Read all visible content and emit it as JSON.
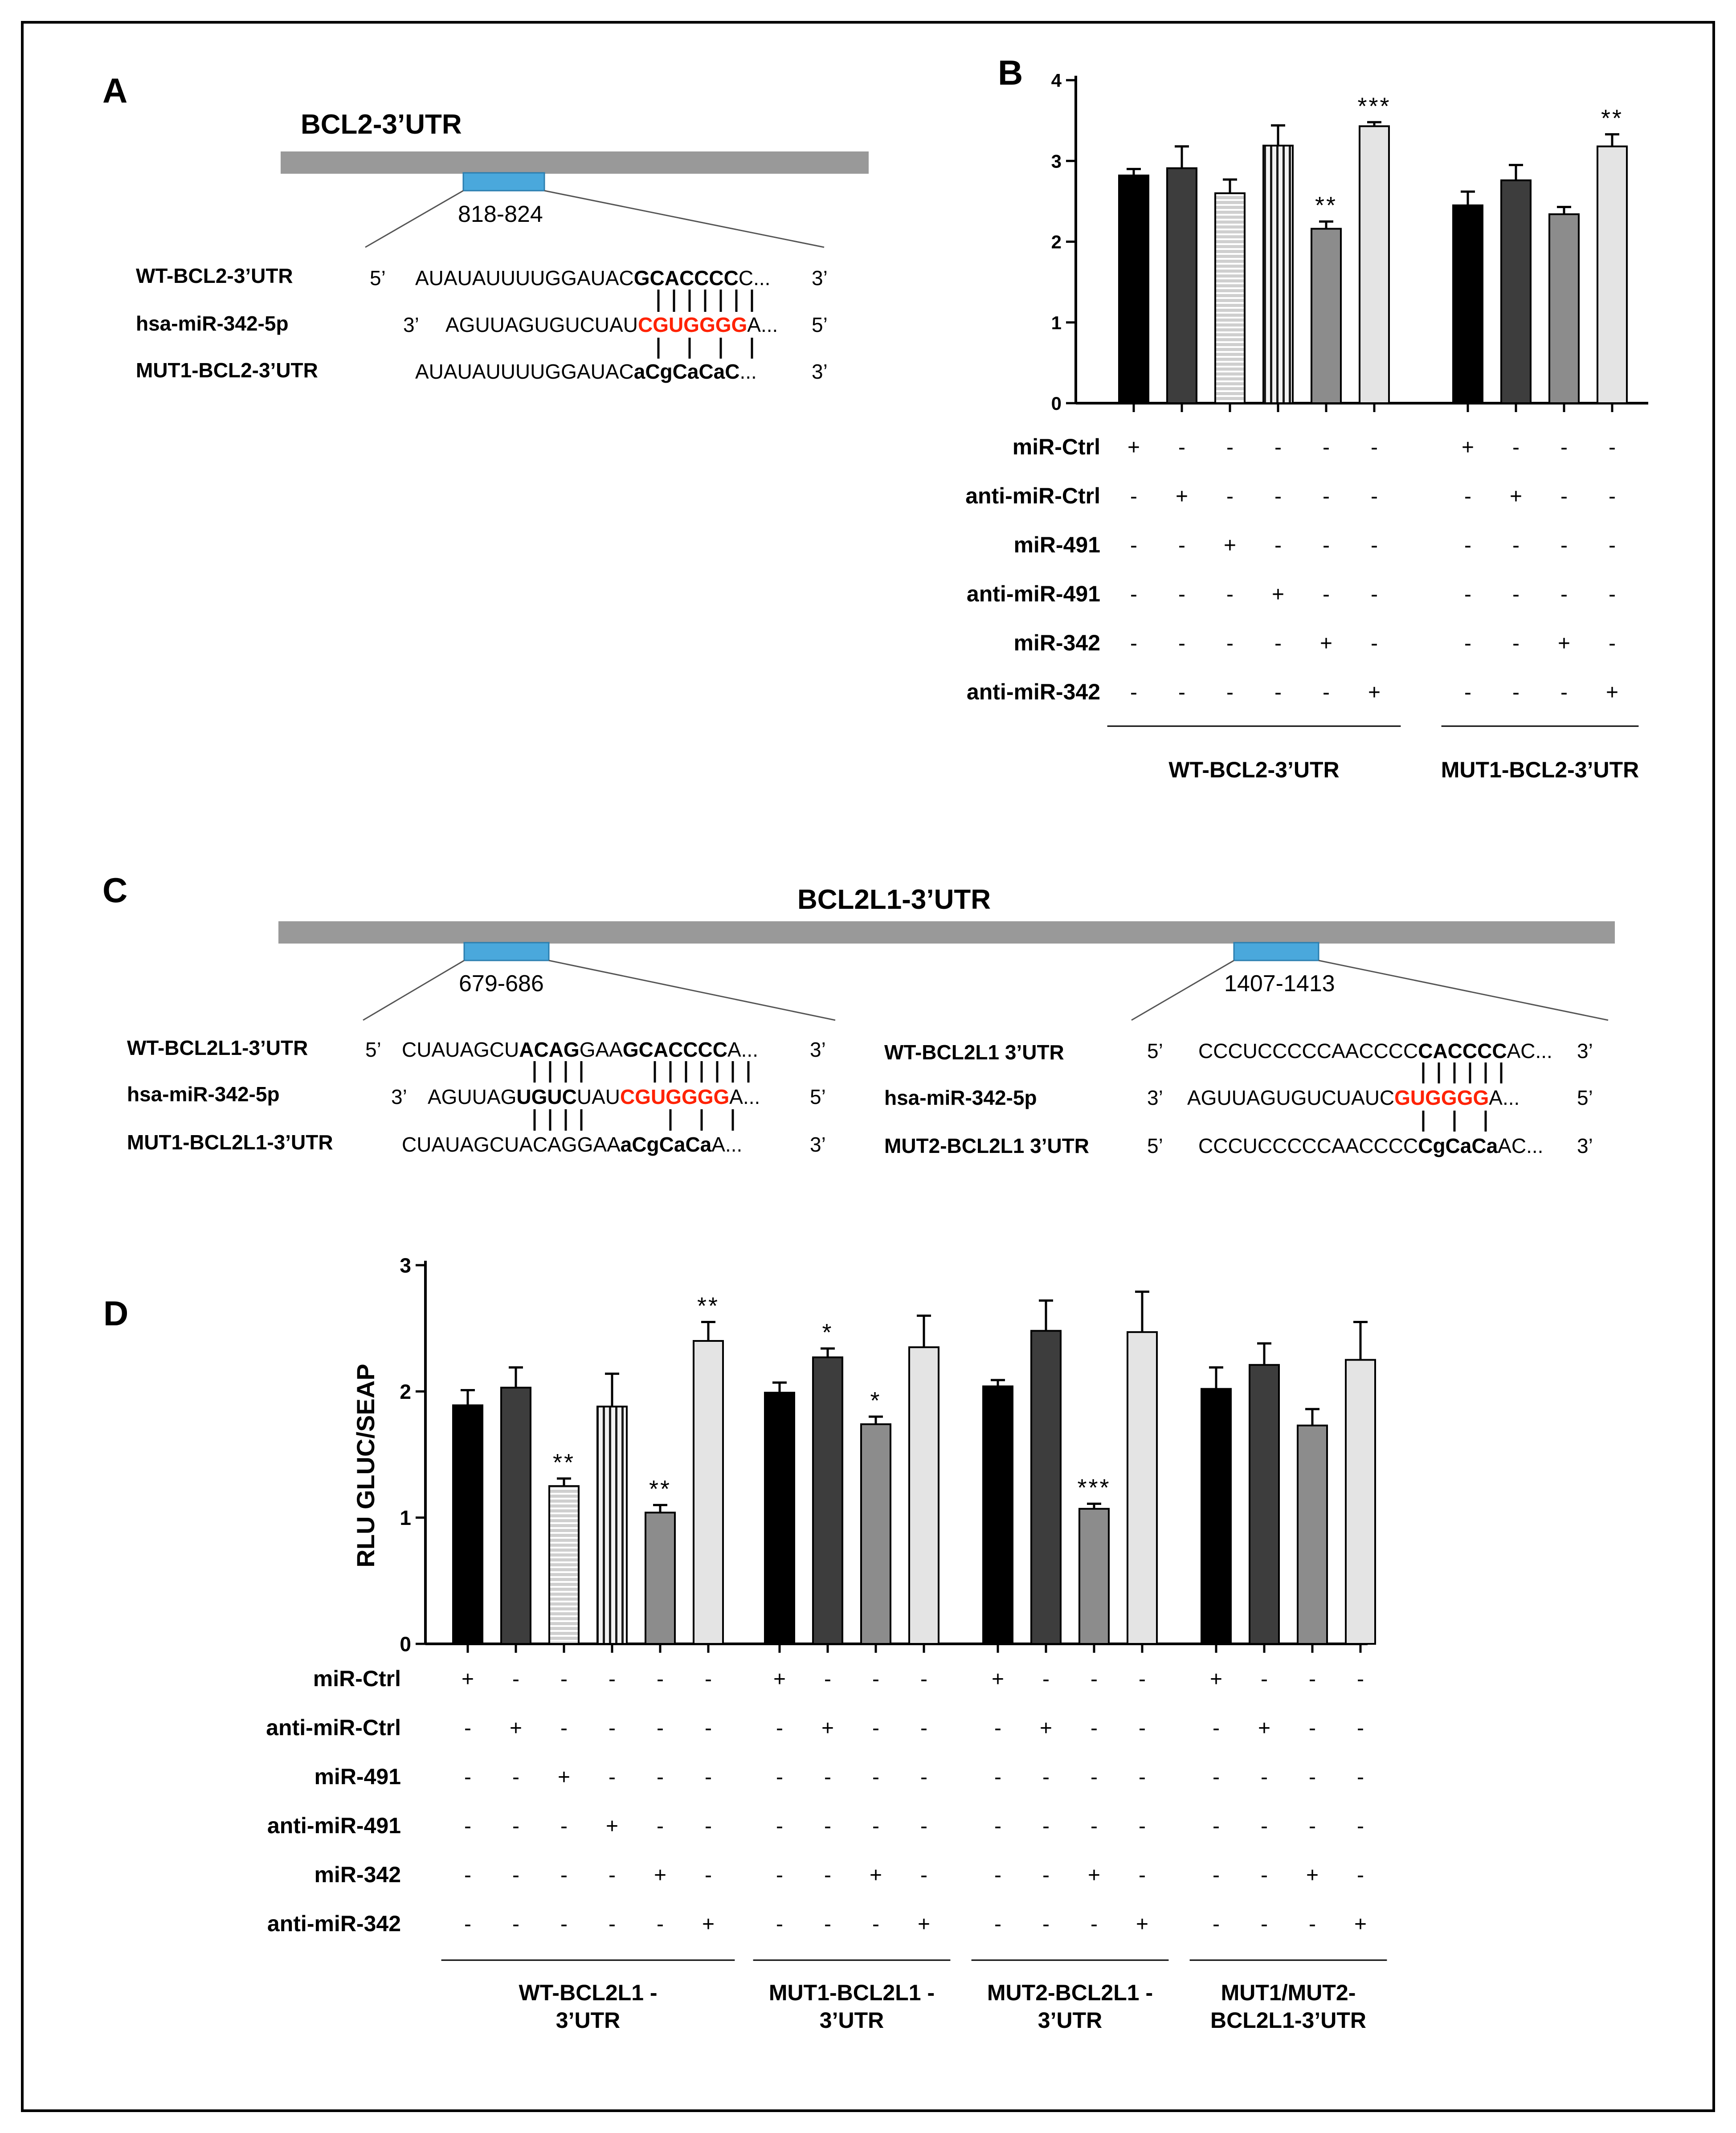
{
  "panels": {
    "A": {
      "letter": "A",
      "gene_title": "BCL2-3’UTR",
      "site_label": "818-824",
      "rows": [
        {
          "label": "WT-BCL2-3’UTR",
          "p5": "5’",
          "pre": "AUAUAUUUUGGAUAC",
          "core": "GCACCCC",
          "post": "C...",
          "p3": "3’"
        },
        {
          "label": "hsa-miR-342-5p",
          "p5": "3’",
          "pre": "AGUUAGUGUCUAU",
          "core": "CGUGGGG",
          "post": "A...",
          "p3": "5’"
        },
        {
          "label": "MUT1-BCL2-3’UTR",
          "p5": "",
          "pre": "AUAUAUUUUGGAUAC",
          "core": "aCgCaCaC",
          "post": "...",
          "p3": "3’"
        }
      ]
    },
    "C": {
      "letter": "C",
      "gene_title": "BCL2L1-3’UTR",
      "site1_label": "679-686",
      "site2_label": "1407-1413",
      "left_rows": [
        {
          "label": "WT-BCL2L1-3’UTR",
          "p5": "5’",
          "pre": "CUAUAGCU",
          "b1": "ACAG",
          "mid": "GAA",
          "core": "GCACCCC",
          "post": "A...",
          "p3": "3’"
        },
        {
          "label": "hsa-miR-342-5p",
          "p5": "3’",
          "pre": "AGUUAG",
          "b1": "UGUC",
          "mid": "UAU",
          "core": "CGUGGGG",
          "post": "A...",
          "p3": "5’"
        },
        {
          "label": "MUT1-BCL2L1-3’UTR",
          "p5": "",
          "pre": "CUAUAGCUACAGGAA",
          "b1": "",
          "mid": "",
          "core": "aCgCaCa",
          "post": "A...",
          "p3": "3’"
        }
      ],
      "right_rows": [
        {
          "label": "WT-BCL2L1 3’UTR",
          "p5": "5’",
          "pre": "CCCUCCCCCAACCCC",
          "core": "CACCCC",
          "post": "AC...",
          "p3": "3’"
        },
        {
          "label": "hsa-miR-342-5p",
          "p5": "3’",
          "pre": "AGUUAGUGUCUAUC",
          "core": "GUGGGG",
          "post": "A...",
          "p3": "5’"
        },
        {
          "label": "MUT2-BCL2L1 3’UTR",
          "p5": "5’",
          "pre": "CCCUCCCCCAACCCC",
          "core": "CgCaCa",
          "post": "AC...",
          "p3": "3’"
        }
      ]
    }
  },
  "colors": {
    "bar_fills": [
      "#000000",
      "#3d3d3d",
      "#c8c8c8",
      "#e6e6e6",
      "#8c8c8c",
      "#e4e4e4"
    ],
    "utr_bar": "#999999",
    "site_box": "#4aa8dc",
    "seed_red": "#ff2200"
  },
  "chart_data": [
    {
      "type": "bar",
      "panel": "B",
      "letter": "B",
      "title": "",
      "xlabel": "",
      "ylabel": "",
      "ylim": [
        0,
        4
      ],
      "yticks": [
        "0",
        "1",
        "2",
        "3",
        "4"
      ],
      "treatments": [
        "miR-Ctrl",
        "anti-miR-Ctrl",
        "miR-491",
        "anti-miR-491",
        "miR-342",
        "anti-miR-342"
      ],
      "groups": [
        {
          "name": "WT-BCL2-3’UTR",
          "name_lines": [
            "WT-BCL2-3’UTR"
          ],
          "treatment_idx": [
            0,
            1,
            2,
            3,
            4,
            5
          ],
          "values": [
            2.82,
            2.91,
            2.6,
            3.19,
            2.16,
            3.43
          ],
          "errors": [
            0.08,
            0.27,
            0.17,
            0.25,
            0.09,
            0.05
          ],
          "stars": [
            "",
            "",
            "",
            "",
            "**",
            "***"
          ]
        },
        {
          "name": "MUT1-BCL2-3’UTR",
          "name_lines": [
            "MUT1-BCL2-3’UTR"
          ],
          "treatment_idx": [
            0,
            1,
            4,
            5
          ],
          "values": [
            2.45,
            2.76,
            2.34,
            3.18
          ],
          "errors": [
            0.17,
            0.19,
            0.09,
            0.15
          ],
          "stars": [
            "",
            "",
            "",
            "**"
          ]
        }
      ],
      "matrix": [
        [
          "+",
          "-",
          "-",
          "-",
          "-",
          "-",
          "+",
          "-",
          "-",
          "-"
        ],
        [
          "-",
          "+",
          "-",
          "-",
          "-",
          "-",
          "-",
          "+",
          "-",
          "-"
        ],
        [
          "-",
          "-",
          "+",
          "-",
          "-",
          "-",
          "-",
          "-",
          "-",
          "-"
        ],
        [
          "-",
          "-",
          "-",
          "+",
          "-",
          "-",
          "-",
          "-",
          "-",
          "-"
        ],
        [
          "-",
          "-",
          "-",
          "-",
          "+",
          "-",
          "-",
          "-",
          "+",
          "-"
        ],
        [
          "-",
          "-",
          "-",
          "-",
          "-",
          "+",
          "-",
          "-",
          "-",
          "+"
        ]
      ]
    },
    {
      "type": "bar",
      "panel": "D",
      "letter": "D",
      "title": "",
      "xlabel": "",
      "ylabel": "RLU GLUC/SEAP",
      "ylim": [
        0,
        3
      ],
      "yticks": [
        "0",
        "1",
        "2",
        "3"
      ],
      "treatments": [
        "miR-Ctrl",
        "anti-miR-Ctrl",
        "miR-491",
        "anti-miR-491",
        "miR-342",
        "anti-miR-342"
      ],
      "groups": [
        {
          "name": "WT-BCL2L1 - 3’UTR",
          "name_lines": [
            "WT-BCL2L1 -",
            "3’UTR"
          ],
          "treatment_idx": [
            0,
            1,
            2,
            3,
            4,
            5
          ],
          "values": [
            1.89,
            2.03,
            1.25,
            1.88,
            1.04,
            2.4
          ],
          "errors": [
            0.12,
            0.16,
            0.06,
            0.26,
            0.06,
            0.15
          ],
          "stars": [
            "",
            "",
            "**",
            "",
            "**",
            "**"
          ]
        },
        {
          "name": "MUT1-BCL2L1 - 3’UTR",
          "name_lines": [
            "MUT1-BCL2L1 -",
            "3’UTR"
          ],
          "treatment_idx": [
            0,
            1,
            4,
            5
          ],
          "values": [
            1.99,
            2.27,
            1.74,
            2.35
          ],
          "errors": [
            0.08,
            0.07,
            0.06,
            0.25
          ],
          "stars": [
            "",
            "*",
            "*",
            ""
          ]
        },
        {
          "name": "MUT2-BCL2L1 - 3’UTR",
          "name_lines": [
            "MUT2-BCL2L1 -",
            "3’UTR"
          ],
          "treatment_idx": [
            0,
            1,
            4,
            5
          ],
          "values": [
            2.04,
            2.48,
            1.07,
            2.47
          ],
          "errors": [
            0.05,
            0.24,
            0.04,
            0.32
          ],
          "stars": [
            "",
            "",
            "***",
            ""
          ]
        },
        {
          "name": "MUT1/MUT2- BCL2L1-3’UTR",
          "name_lines": [
            "MUT1/MUT2-",
            "BCL2L1-3’UTR"
          ],
          "treatment_idx": [
            0,
            1,
            4,
            5
          ],
          "values": [
            2.02,
            2.21,
            1.73,
            2.25
          ],
          "errors": [
            0.17,
            0.17,
            0.13,
            0.3
          ],
          "stars": [
            "",
            "",
            "",
            ""
          ]
        }
      ],
      "matrix": [
        [
          "+",
          "-",
          "-",
          "-",
          "-",
          "-",
          "+",
          "-",
          "-",
          "-",
          "+",
          "-",
          "-",
          "-",
          "+",
          "-",
          "-",
          "-"
        ],
        [
          "-",
          "+",
          "-",
          "-",
          "-",
          "-",
          "-",
          "+",
          "-",
          "-",
          "-",
          "+",
          "-",
          "-",
          "-",
          "+",
          "-",
          "-"
        ],
        [
          "-",
          "-",
          "+",
          "-",
          "-",
          "-",
          "-",
          "-",
          "-",
          "-",
          "-",
          "-",
          "-",
          "-",
          "-",
          "-",
          "-",
          "-"
        ],
        [
          "-",
          "-",
          "-",
          "+",
          "-",
          "-",
          "-",
          "-",
          "-",
          "-",
          "-",
          "-",
          "-",
          "-",
          "-",
          "-",
          "-",
          "-"
        ],
        [
          "-",
          "-",
          "-",
          "-",
          "+",
          "-",
          "-",
          "-",
          "+",
          "-",
          "-",
          "-",
          "+",
          "-",
          "-",
          "-",
          "+",
          "-"
        ],
        [
          "-",
          "-",
          "-",
          "-",
          "-",
          "+",
          "-",
          "-",
          "-",
          "+",
          "-",
          "-",
          "-",
          "+",
          "-",
          "-",
          "-",
          "+"
        ]
      ]
    }
  ]
}
